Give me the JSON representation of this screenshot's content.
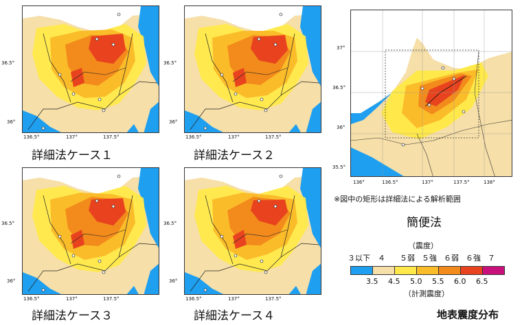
{
  "maps": [
    {
      "caption": "詳細法ケース１",
      "variant": 0
    },
    {
      "caption": "詳細法ケース２",
      "variant": 1
    },
    {
      "caption": "詳細法ケース３",
      "variant": 2
    },
    {
      "caption": "詳細法ケース４",
      "variant": 3
    }
  ],
  "detail_ticks": {
    "x": [
      "136.5°",
      "137°",
      "137.5°"
    ],
    "y": [
      "36.5°",
      "36°"
    ]
  },
  "simple_map": {
    "caption": "簡便法",
    "note": "※図中の矩形は詳細法による解析範囲",
    "ticks_x": [
      "136°",
      "136.5°",
      "137°",
      "137.5°",
      "138°"
    ],
    "ticks_y": [
      "37°",
      "36.5°",
      "36°",
      "35.5°"
    ]
  },
  "legend": {
    "top_title": "（震度）",
    "classes": [
      "３以下",
      "４",
      "５弱",
      "５強",
      "６弱",
      "６強",
      "７"
    ],
    "values": [
      "3.5",
      "4.5",
      "5.0",
      "5.5",
      "6.0",
      "6.5"
    ],
    "bottom_title": "（計測震度）",
    "colors": [
      "#1f9ff0",
      "#f6dfa8",
      "#ffe94a",
      "#fbbc2a",
      "#f28b1c",
      "#e8431e",
      "#a3121c",
      "#c80f7a"
    ]
  },
  "main_title": "地表震度分布"
}
